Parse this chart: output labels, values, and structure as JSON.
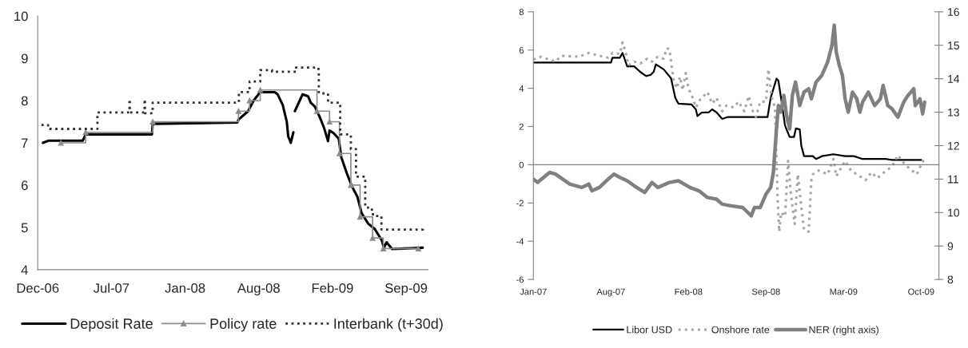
{
  "chart_data": [
    {
      "type": "line",
      "xlim": [
        "2006-12-15",
        "2009-11-08"
      ],
      "ylim": [
        4,
        10
      ],
      "yticks": [
        4,
        5,
        6,
        7,
        8,
        9,
        10
      ],
      "xticks": [
        {
          "value": "2006-12-15",
          "label": "Dec-06"
        },
        {
          "value": "2007-07-03",
          "label": "Jul-07"
        },
        {
          "value": "2008-01-19",
          "label": "Jan-08"
        },
        {
          "value": "2008-08-06",
          "label": "Aug-08"
        },
        {
          "value": "2009-02-22",
          "label": "Feb-09"
        },
        {
          "value": "2009-09-10",
          "label": "Sep-09"
        }
      ],
      "legend": "bottom",
      "series": [
        {
          "name": "Deposit Rate",
          "color": "#000000",
          "line_style": "solid",
          "marker": "none",
          "x": [
            "2006-12-29",
            "2007-01-12",
            "2007-04-16",
            "2007-04-24",
            "2007-10-21",
            "2007-10-23",
            "2008-06-09",
            "2008-06-12",
            "2008-07-08",
            "2008-07-23",
            "2008-08-10",
            "2008-09-18",
            "2008-09-26",
            "2008-10-10",
            "2008-10-21",
            "2008-10-25",
            "2008-11-01",
            "2008-11-08",
            "2008-11-10",
            "2008-11-12",
            "2008-12-03",
            "2008-12-18",
            "2008-12-25",
            "2009-01-05",
            "2009-01-19",
            "2009-01-30",
            "2009-02-10",
            "2009-02-14",
            "2009-02-25",
            "2009-03-11",
            "2009-03-18",
            "2009-04-02",
            "2009-04-16",
            "2009-05-01",
            "2009-05-12",
            "2009-05-30",
            "2009-06-17",
            "2009-07-05",
            "2009-07-12",
            "2009-07-19",
            "2009-08-03",
            "2009-10-25"
          ],
          "values": [
            7.0,
            7.05,
            7.05,
            7.2,
            7.2,
            7.45,
            7.48,
            7.55,
            7.75,
            8.0,
            8.2,
            8.2,
            8.15,
            7.9,
            7.5,
            7.15,
            7.0,
            7.25,
            null,
            7.75,
            8.15,
            8.1,
            7.95,
            7.86,
            7.6,
            7.36,
            7.04,
            7.29,
            7.23,
            7.1,
            6.66,
            6.28,
            5.97,
            5.72,
            5.34,
            5.09,
            4.96,
            4.71,
            4.52,
            4.65,
            4.49,
            4.52
          ]
        },
        {
          "name": "Policy rate",
          "type": "step",
          "color": "#8c8c8c",
          "line_style": "solid",
          "marker": "triangle",
          "x": [
            "2007-02-16",
            "2007-04-24",
            "2007-10-23",
            "2008-06-12",
            "2008-07-12",
            "2008-08-10",
            "2009-01-11",
            "2009-02-14",
            "2009-03-13",
            "2009-04-13",
            "2009-05-08",
            "2009-06-11",
            "2009-07-10",
            "2009-10-13"
          ],
          "values": [
            7.0,
            7.25,
            7.5,
            7.75,
            8.0,
            8.25,
            7.75,
            7.5,
            6.75,
            6.0,
            5.25,
            4.75,
            4.5,
            4.5
          ]
        },
        {
          "name": "Interbank (t+30d)",
          "type": "step",
          "color": "#303030",
          "line_style": "dotted",
          "marker": "none",
          "x": [
            "2006-12-25",
            "2007-01-12",
            "2007-05-26",
            "2007-08-21",
            "2007-08-22",
            "2007-10-01",
            "2007-10-02",
            "2007-10-23",
            "2008-06-13",
            "2008-07-12",
            "2008-08-10",
            "2008-09-11",
            "2008-11-15",
            "2009-01-15",
            "2009-01-16",
            "2009-02-10",
            "2009-02-14",
            "2009-03-15",
            "2009-04-13",
            "2009-04-27",
            "2009-05-22",
            "2009-06-09",
            "2009-06-20",
            "2009-07-05",
            "2009-10-26"
          ],
          "values": [
            7.42,
            7.33,
            7.72,
            8.03,
            7.72,
            8.03,
            7.7,
            7.95,
            8.2,
            8.45,
            8.72,
            8.68,
            8.78,
            8.72,
            8.17,
            8.0,
            7.95,
            7.2,
            6.85,
            6.2,
            5.47,
            5.31,
            5.27,
            4.95,
            5.0
          ]
        }
      ]
    },
    {
      "type": "line",
      "xlim": [
        "2007-01-15",
        "2009-11-26"
      ],
      "ylim": [
        -6,
        8
      ],
      "yticks": [
        -6,
        -4,
        -2,
        0,
        2,
        4,
        6,
        8
      ],
      "y2lim": [
        8,
        16
      ],
      "y2ticks": [
        8,
        9,
        10,
        11,
        12,
        13,
        14,
        15,
        16
      ],
      "xticks": [
        {
          "value": "2007-01-15",
          "label": "Jan-07"
        },
        {
          "value": "2007-08-03",
          "label": "Aug-07"
        },
        {
          "value": "2008-02-19",
          "label": "Feb-08"
        },
        {
          "value": "2008-09-06",
          "label": "Sep-08"
        },
        {
          "value": "2009-03-25",
          "label": "Mar-09"
        },
        {
          "value": "2009-10-11",
          "label": "Oct-09"
        }
      ],
      "legend": "bottom",
      "series": [
        {
          "name": "Libor USD",
          "color": "#000000",
          "line_style": "solid",
          "marker": "none",
          "x": [
            "2007-01-15",
            "2007-08-03",
            "2007-08-07",
            "2007-08-26",
            "2007-09-02",
            "2007-09-14",
            "2007-10-02",
            "2007-10-18",
            "2007-11-02",
            "2007-11-13",
            "2007-11-21",
            "2007-11-27",
            "2007-12-17",
            "2008-01-05",
            "2008-01-16",
            "2008-01-24",
            "2008-02-27",
            "2008-03-09",
            "2008-03-13",
            "2008-03-24",
            "2008-04-12",
            "2008-04-20",
            "2008-05-01",
            "2008-05-16",
            "2008-05-31",
            "2008-09-10",
            "2008-09-18",
            "2008-10-03",
            "2008-10-08",
            "2008-10-18",
            "2008-10-25",
            "2008-11-06",
            "2008-11-17",
            "2008-11-22",
            "2008-12-02",
            "2008-12-06",
            "2008-12-13",
            "2009-01-05",
            "2009-01-13",
            "2009-01-28",
            "2009-02-27",
            "2009-03-29",
            "2009-04-21",
            "2009-05-13",
            "2009-07-13",
            "2009-07-28",
            "2009-10-11"
          ],
          "values": [
            5.35,
            5.35,
            5.6,
            5.6,
            5.85,
            5.15,
            5.15,
            4.85,
            4.64,
            4.7,
            4.85,
            5.25,
            4.99,
            4.53,
            3.5,
            3.2,
            3.15,
            2.9,
            2.55,
            2.73,
            2.75,
            2.9,
            2.75,
            2.4,
            2.5,
            2.5,
            3.5,
            4.5,
            4.4,
            3.05,
            2.05,
            1.45,
            1.45,
            1.9,
            1.85,
            1.0,
            0.45,
            0.45,
            0.3,
            0.45,
            0.55,
            0.45,
            0.45,
            0.3,
            0.3,
            0.25,
            0.25
          ]
        },
        {
          "name": "Onshore rate",
          "color": "#a6a6a6",
          "line_style": "dotted",
          "marker": "none",
          "x": [
            "2007-01-15",
            "2007-02-03",
            "2007-03-13",
            "2007-03-28",
            "2007-05-12",
            "2007-06-07",
            "2007-07-04",
            "2007-07-27",
            "2007-08-07",
            "2007-08-26",
            "2007-09-02",
            "2007-09-10",
            "2007-09-17",
            "2007-10-02",
            "2007-10-18",
            "2007-11-05",
            "2007-11-17",
            "2007-12-02",
            "2007-12-17",
            "2007-12-25",
            "2008-01-01",
            "2008-01-07",
            "2008-01-12",
            "2008-01-20",
            "2008-01-28",
            "2008-02-04",
            "2008-02-12",
            "2008-02-19",
            "2008-03-01",
            "2008-03-09",
            "2008-03-20",
            "2008-04-08",
            "2008-04-20",
            "2008-05-01",
            "2008-05-16",
            "2008-05-27",
            "2008-06-15",
            "2008-06-27",
            "2008-07-12",
            "2008-07-23",
            "2008-08-03",
            "2008-08-11",
            "2008-08-22",
            "2008-09-06",
            "2008-09-12",
            "2008-09-21",
            "2008-09-29",
            "2008-10-06",
            "2008-10-10",
            "2008-10-15",
            "2008-10-25",
            "2008-11-02",
            "2008-11-09",
            "2008-11-19",
            "2008-11-27",
            "2008-12-06",
            "2008-12-13",
            "2008-12-25",
            "2009-01-01",
            "2009-01-05",
            "2009-01-20",
            "2009-02-12",
            "2009-02-27",
            "2009-03-06",
            "2009-03-29",
            "2009-04-13",
            "2009-04-28",
            "2009-05-21",
            "2009-06-05",
            "2009-06-20",
            "2009-07-13",
            "2009-07-28",
            "2009-08-12",
            "2009-08-27",
            "2009-09-11",
            "2009-09-30",
            "2009-10-11",
            "2009-10-19"
          ],
          "values": [
            5.5,
            5.65,
            5.4,
            5.7,
            5.65,
            5.85,
            5.7,
            5.6,
            5.85,
            5.8,
            6.4,
            5.9,
            5.2,
            5.4,
            5.3,
            5.55,
            5.4,
            5.65,
            5.55,
            6.1,
            6.05,
            5.1,
            4.4,
            4.0,
            4.6,
            3.9,
            4.8,
            4.0,
            3.5,
            3.0,
            3.4,
            3.8,
            3.2,
            3.5,
            2.8,
            3.1,
            3.0,
            3.3,
            2.8,
            3.6,
            2.8,
            2.5,
            3.3,
            3.3,
            5.0,
            3.5,
            3.0,
            -1.8,
            -3.5,
            -2.5,
            -2.7,
            0.2,
            -1.5,
            -3.1,
            -0.5,
            -2.2,
            -3.4,
            -3.5,
            -0.8,
            -0.5,
            -0.3,
            -0.5,
            0.3,
            -0.6,
            0.2,
            -0.3,
            -0.5,
            -0.8,
            -0.4,
            -0.7,
            -0.3,
            -0.1,
            0.5,
            0.1,
            -0.2,
            -0.5,
            0.0,
            0.3
          ]
        },
        {
          "name": "NER (right axis)",
          "axis": "y2",
          "color": "#808080",
          "line_style": "solid",
          "marker": "none",
          "x": [
            "2007-01-15",
            "2007-01-26",
            "2007-02-26",
            "2007-03-13",
            "2007-04-19",
            "2007-05-20",
            "2007-06-07",
            "2007-06-15",
            "2007-07-04",
            "2007-07-27",
            "2007-08-11",
            "2007-08-26",
            "2007-09-14",
            "2007-10-02",
            "2007-10-29",
            "2007-11-17",
            "2007-12-02",
            "2008-01-01",
            "2008-01-24",
            "2008-02-23",
            "2008-03-17",
            "2008-04-08",
            "2008-05-01",
            "2008-05-16",
            "2008-06-08",
            "2008-07-08",
            "2008-07-30",
            "2008-08-07",
            "2008-08-22",
            "2008-09-06",
            "2008-09-18",
            "2008-09-25",
            "2008-10-03",
            "2008-10-08",
            "2008-10-14",
            "2008-10-22",
            "2008-10-29",
            "2008-11-06",
            "2008-11-13",
            "2008-11-21",
            "2008-12-02",
            "2008-12-13",
            "2008-12-25",
            "2009-01-01",
            "2009-01-13",
            "2009-01-28",
            "2009-02-12",
            "2009-02-23",
            "2009-03-01",
            "2009-03-06",
            "2009-03-14",
            "2009-03-22",
            "2009-03-29",
            "2009-04-06",
            "2009-04-17",
            "2009-04-28",
            "2009-05-06",
            "2009-05-13",
            "2009-05-28",
            "2009-06-13",
            "2009-06-28",
            "2009-07-05",
            "2009-07-17",
            "2009-07-28",
            "2009-08-12",
            "2009-08-27",
            "2009-09-07",
            "2009-09-22",
            "2009-09-26",
            "2009-10-08",
            "2009-10-15",
            "2009-10-20"
          ],
          "values": [
            11.0,
            10.9,
            11.2,
            11.15,
            10.85,
            10.75,
            10.85,
            10.65,
            10.75,
            11.0,
            11.15,
            11.05,
            10.95,
            10.8,
            10.6,
            10.9,
            10.75,
            10.9,
            10.95,
            10.75,
            10.65,
            10.45,
            10.4,
            10.25,
            10.2,
            10.15,
            9.9,
            10.15,
            10.15,
            10.55,
            10.75,
            11.2,
            12.5,
            13.2,
            13.0,
            13.5,
            12.9,
            12.5,
            13.5,
            13.9,
            13.2,
            13.6,
            13.7,
            13.4,
            13.9,
            14.1,
            14.5,
            15.0,
            15.6,
            14.8,
            14.4,
            14.1,
            13.4,
            13.0,
            13.6,
            13.4,
            13.0,
            13.3,
            13.6,
            13.2,
            13.4,
            13.8,
            13.2,
            13.1,
            12.85,
            13.3,
            13.5,
            13.7,
            13.2,
            13.4,
            12.95,
            13.3
          ]
        }
      ]
    }
  ]
}
